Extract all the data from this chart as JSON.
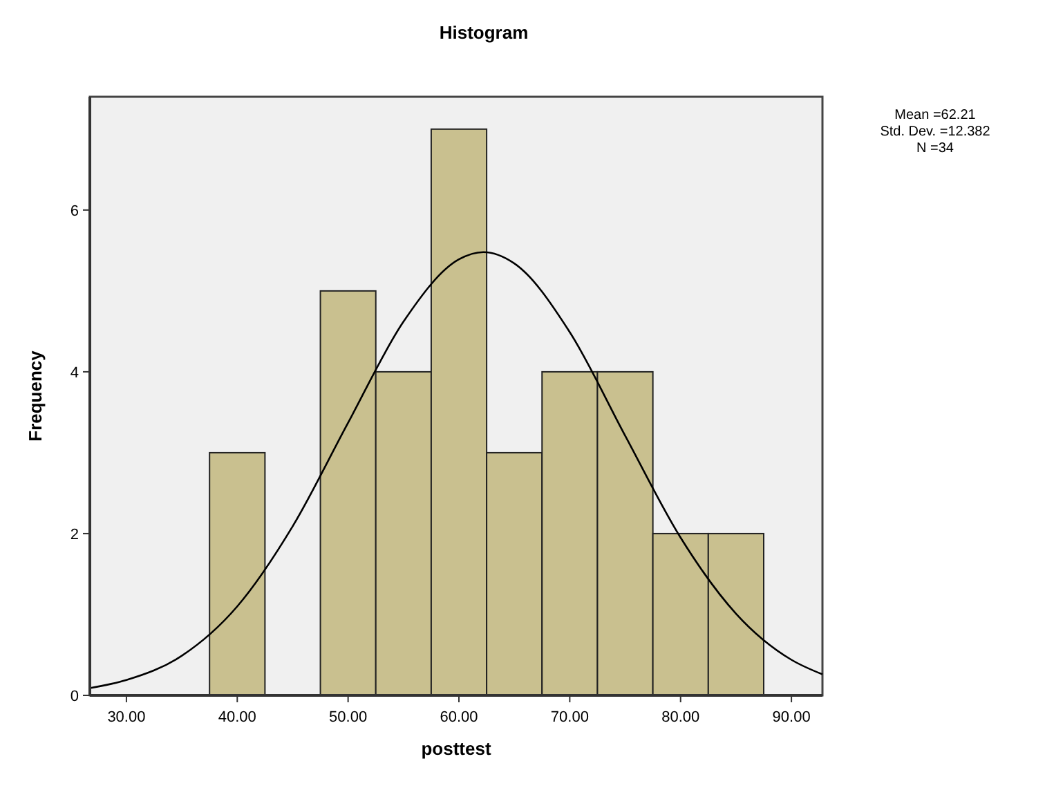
{
  "chart_data": {
    "type": "histogram",
    "title": "Histogram",
    "xlabel": "posttest",
    "ylabel": "Frequency",
    "bins": [
      37.5,
      42.5,
      47.5,
      52.5,
      57.5,
      62.5,
      67.5,
      72.5,
      77.5,
      82.5,
      87.5
    ],
    "values": [
      3,
      0,
      5,
      4,
      7,
      3,
      4,
      4,
      2,
      2
    ],
    "color": "#c9c08f",
    "series": [
      {
        "type": "line",
        "color": "#000000",
        "x": [
          26.7,
          30,
          35,
          40,
          45,
          50,
          55,
          60,
          62.21,
          65,
          70,
          75,
          80,
          85,
          90,
          92.8
        ],
        "values": [
          0.09,
          0.19,
          0.49,
          1.1,
          2.09,
          3.37,
          4.62,
          5.39,
          5.48,
          5.34,
          4.49,
          3.21,
          1.95,
          1.01,
          0.44,
          0.26
        ]
      }
    ],
    "xlim": [
      26.7,
      92.8
    ],
    "xticks": [
      {
        "value": 30,
        "label": "30.00"
      },
      {
        "value": 40,
        "label": "40.00"
      },
      {
        "value": 50,
        "label": "50.00"
      },
      {
        "value": 60,
        "label": "60.00"
      },
      {
        "value": 70,
        "label": "70.00"
      },
      {
        "value": 80,
        "label": "80.00"
      },
      {
        "value": 90,
        "label": "90.00"
      }
    ],
    "ylim": [
      0,
      7.4
    ],
    "yticks": [
      0,
      2,
      4,
      6
    ],
    "grid": false,
    "annotations": [
      "Mean =62.21",
      "Std. Dev. =12.382",
      "N =34"
    ]
  }
}
